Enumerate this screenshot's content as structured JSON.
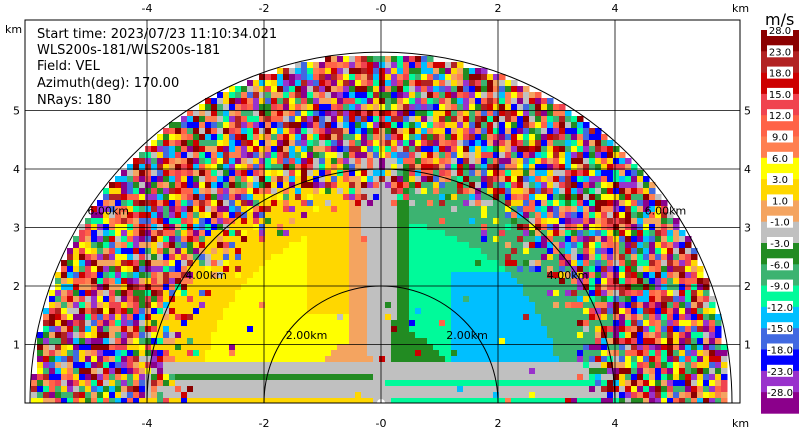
{
  "header": {
    "start_time": "Start time: 2023/07/23 11:10:34.021",
    "instrument": "WLS200s-181/WLS200s-181",
    "field": "Field: VEL",
    "azimuth": "Azimuth(deg): 170.00",
    "nrays": "NRays: 180"
  },
  "axes": {
    "unit_label": "km",
    "x_ticks": [
      "-4",
      "-2",
      "-0",
      "2",
      "4"
    ],
    "y_ticks": [
      "1",
      "2",
      "3",
      "4",
      "5"
    ]
  },
  "range_rings": [
    "2.00km",
    "2.00km",
    "4.00km",
    "4.00km",
    "6.00km",
    "6.00km"
  ],
  "colorbar": {
    "unit": "m/s",
    "labels": [
      "28.0",
      "23.0",
      "18.0",
      "15.0",
      "12.0",
      "9.0",
      "6.0",
      "3.0",
      "1.0",
      "-1.0",
      "-3.0",
      "-6.0",
      "-9.0",
      "-12.0",
      "-15.0",
      "-18.0",
      "-23.0",
      "-28.0"
    ],
    "colors": [
      "#8b0000",
      "#b22222",
      "#cd0000",
      "#f0434f",
      "#ff6347",
      "#ff7f50",
      "#ffff00",
      "#ffd700",
      "#f4a460",
      "#c0c0c0",
      "#228b22",
      "#3cb371",
      "#00fa9a",
      "#00bfff",
      "#4169e1",
      "#0000ff",
      "#9932cc",
      "#8b008b"
    ]
  },
  "chart_data": {
    "type": "heatmap",
    "field": "VEL",
    "unit": "m/s",
    "azimuth_deg": 170.0,
    "nrays": 180,
    "range_rings_km": [
      2,
      4,
      6
    ],
    "xlim_km": [
      -6,
      6
    ],
    "ylim_km": [
      0,
      6
    ]
  }
}
